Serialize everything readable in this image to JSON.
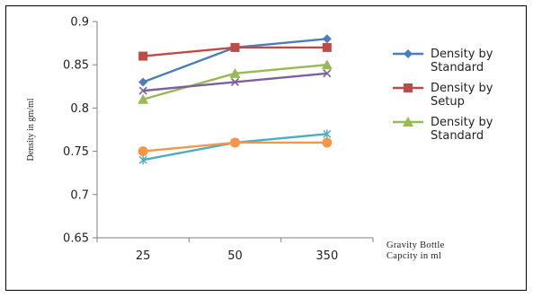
{
  "chart_data": {
    "type": "line",
    "title": "",
    "ylabel": "Density in gm/ml",
    "xlabel": [
      "Gravity Bottle",
      "Capcity in ml"
    ],
    "categories": [
      "25",
      "50",
      "350"
    ],
    "ylim": [
      0.65,
      0.9
    ],
    "yticks": [
      "0.9",
      "0.85",
      "0.8",
      "0.75",
      "0.7",
      "0.65"
    ],
    "grid": false,
    "legend_placement": "right",
    "series": [
      {
        "name": [
          "Density by",
          "Standard"
        ],
        "values": [
          0.83,
          0.87,
          0.88
        ],
        "color": "#4a7ebb",
        "marker": "diamond"
      },
      {
        "name": [
          "Density by",
          "Setup"
        ],
        "values": [
          0.86,
          0.87,
          0.87
        ],
        "color": "#be4b48",
        "marker": "square"
      },
      {
        "name": [
          "Density by",
          "Standard"
        ],
        "values": [
          0.81,
          0.84,
          0.85
        ],
        "color": "#98b954",
        "marker": "triangle"
      },
      {
        "values": [
          0.82,
          0.83,
          0.84
        ],
        "color": "#7d60a0",
        "marker": "x"
      },
      {
        "values": [
          0.74,
          0.76,
          0.77
        ],
        "color": "#4bacc6",
        "marker": "star"
      },
      {
        "values": [
          0.75,
          0.76,
          0.76
        ],
        "color": "#f79646",
        "marker": "circle"
      }
    ]
  }
}
